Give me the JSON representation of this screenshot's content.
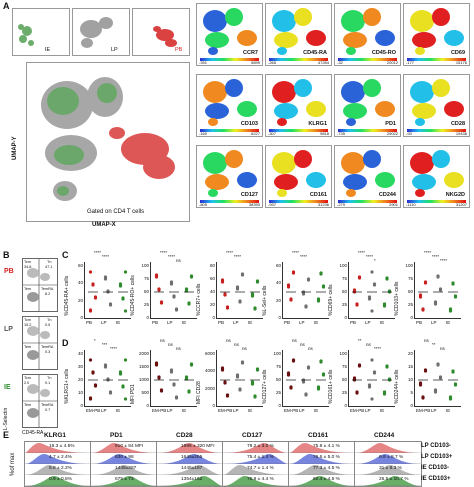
{
  "panel_letters": {
    "A": "A",
    "B": "B",
    "C": "C",
    "D": "D",
    "E": "E"
  },
  "panelA": {
    "mini": [
      {
        "label": "IE",
        "color": "#2e8b2e"
      },
      {
        "label": "LP",
        "color": "#888888"
      },
      {
        "label": "PB",
        "color": "#d42020"
      }
    ],
    "umap": {
      "ylabel": "UMAP-Y",
      "xlabel": "UMAP-X",
      "caption": "Gated on CD4 T cells"
    },
    "tiles": [
      {
        "name": "CCR7",
        "lo": "-391",
        "hi": "5899"
      },
      {
        "name": "CD45-RA",
        "lo": "-265",
        "hi": "47284"
      },
      {
        "name": "CD45-RO",
        "lo": "-32",
        "hi": "20012"
      },
      {
        "name": "CD69",
        "lo": "-177",
        "hi": "15176"
      },
      {
        "name": "CD103",
        "lo": "-160",
        "hi": "6227"
      },
      {
        "name": "KLRG1",
        "lo": "-307",
        "hi": "9818"
      },
      {
        "name": "PD1",
        "lo": "-735",
        "hi": "29022"
      },
      {
        "name": "CD28",
        "lo": "-93",
        "hi": "19436"
      },
      {
        "name": "CD127",
        "lo": "-805",
        "hi": "38390"
      },
      {
        "name": "CD161",
        "lo": "-937",
        "hi": "31236"
      },
      {
        "name": "CD244",
        "lo": "-279",
        "hi": "2901"
      },
      {
        "name": "NKG2D",
        "lo": "-1110",
        "hi": "31207"
      }
    ]
  },
  "panelB": {
    "rows": [
      {
        "label": "PB",
        "color": "#d42020",
        "gates": {
          "tcm": "Tcm",
          "tcm_v": "34.8",
          "tn": "Tn",
          "tn_v": "47.1",
          "tem": "Tem",
          "tem_v": "",
          "temra": "TemRA",
          "temra_v": "8.2"
        }
      },
      {
        "label": "LP",
        "color": "#555555",
        "gates": {
          "tcm": "Tcm",
          "tcm_v": "15.2",
          "tn": "Tn",
          "tn_v": "0.5",
          "tem": "Tem",
          "tem_v": "",
          "temra": "TemRA",
          "temra_v": "0.3"
        }
      },
      {
        "label": "IE",
        "color": "#2e8b2e",
        "gates": {
          "tcm": "Tcm",
          "tcm_v": "2.0",
          "tn": "Tn",
          "tn_v": "0.1",
          "tem": "Tem",
          "tem_v": "",
          "temra": "TemRA",
          "temra_v": "0.7"
        }
      }
    ],
    "ylabel": "L-Selectin",
    "xlabel": "CD45-RA"
  },
  "panelC": {
    "plots": [
      {
        "ylabel": "%CD45-RA+ cells",
        "ticks": [
          "0",
          "20",
          "40",
          "60"
        ],
        "sig": [
          "****",
          "****"
        ],
        "xcats": [
          "PB",
          "LP",
          "IE"
        ]
      },
      {
        "ylabel": "%CD45-RO+ cells",
        "ticks": [
          "0",
          "25",
          "50",
          "75",
          "100"
        ],
        "sig": [
          "****",
          "****",
          "ns"
        ],
        "xcats": [
          "PB",
          "LP",
          "IE"
        ]
      },
      {
        "ylabel": "%CCR7+ cells",
        "ticks": [
          "0",
          "20",
          "40",
          "60",
          "80"
        ],
        "sig": [
          "****",
          "****"
        ],
        "xcats": [
          "PB",
          "LP",
          "IE"
        ]
      },
      {
        "ylabel": "%L-Sel+ cells",
        "ticks": [
          "0",
          "20",
          "40",
          "60"
        ],
        "sig": [
          "****",
          "****"
        ],
        "xcats": [
          "PB",
          "LP",
          "IE"
        ]
      },
      {
        "ylabel": "%CD69+ cells",
        "ticks": [
          "0",
          "25",
          "50",
          "75",
          "100"
        ],
        "sig": [
          "****",
          "****",
          "*"
        ],
        "xcats": [
          "PB",
          "LP",
          "IE"
        ]
      },
      {
        "ylabel": "%CD103+ cells",
        "ticks": [
          "0",
          "25",
          "50",
          "75",
          "100"
        ],
        "sig": [
          "****",
          "****",
          "****"
        ],
        "xcats": [
          "PB",
          "LP",
          "IE"
        ]
      }
    ]
  },
  "panelD": {
    "plots": [
      {
        "ylabel": "%KLRG1+ cells",
        "ticks": [
          "0",
          "10",
          "20",
          "30",
          "40"
        ],
        "sig": [
          "*",
          "***",
          "****"
        ],
        "xcats": [
          "EM-PB",
          "LP",
          "IE"
        ]
      },
      {
        "ylabel": "MFI PD1",
        "ticks": [
          "0",
          "500",
          "1000",
          "1500",
          "2000"
        ],
        "sig": [
          "ns",
          "ns",
          "ns"
        ],
        "xcats": [
          "EM-PB",
          "LP",
          "IE"
        ]
      },
      {
        "ylabel": "MFI CD28",
        "ticks": [
          "0",
          "2000",
          "4000",
          "6000"
        ],
        "sig": [
          "ns",
          "ns",
          "ns"
        ],
        "xcats": [
          "EM-PB",
          "LP",
          "IE"
        ]
      },
      {
        "ylabel": "%CD127+ cells",
        "ticks": [
          "0",
          "25",
          "50",
          "75",
          "100"
        ],
        "sig": [
          "ns",
          "ns",
          "ns"
        ],
        "xcats": [
          "EM-PB",
          "LP",
          "IE"
        ]
      },
      {
        "ylabel": "%CD161+ cells",
        "ticks": [
          "0",
          "25",
          "50",
          "75",
          "100"
        ],
        "sig": [
          "**",
          "ns",
          "****"
        ],
        "xcats": [
          "EM-PB",
          "LP",
          "IE"
        ]
      },
      {
        "ylabel": "%CD244+ cells",
        "ticks": [
          "0",
          "5",
          "10",
          "15",
          "20"
        ],
        "sig": [
          "ns",
          "**",
          "ns"
        ],
        "xcats": [
          "EM-PB",
          "LP",
          "IE"
        ]
      }
    ]
  },
  "panelE": {
    "ylabel": "%of max",
    "rowlabels": [
      "LP CD103-",
      "LP CD103+",
      "IE CD103-",
      "IE CD103+"
    ],
    "columns": [
      {
        "name": "KLRG1",
        "vals": [
          "19.3 ± 4.5%",
          "4.7 ± 2.4%",
          "6.8 ± 2.2%",
          "0.9 ± 0.5%"
        ]
      },
      {
        "name": "PD1",
        "vals": [
          "910 ± 84 MFI",
          "830 ± 98",
          "1445±287",
          "675 ± 73"
        ]
      },
      {
        "name": "CD28",
        "vals": [
          "1996 ± 320 MFI",
          "1645±265",
          "1445±187",
          "1354±162"
        ]
      },
      {
        "name": "CD127",
        "vals": [
          "79.2 ± 3.0 %",
          "75.4 ± 1.4 %",
          "74.7 ± 1.4 %",
          "75.9 ± 4.4 %"
        ]
      },
      {
        "name": "CD161",
        "vals": [
          "75.8 ± 4.1 %",
          "76.6 ± 5.0 %",
          "77.3 ± 4.5 %",
          "60.4 ± 4.5 %"
        ]
      },
      {
        "name": "CD244",
        "vals": [
          "",
          "9.9 ± 8.7 %",
          "31 ± 8.3 %",
          "26.5 ± 10.7 %"
        ]
      }
    ]
  }
}
